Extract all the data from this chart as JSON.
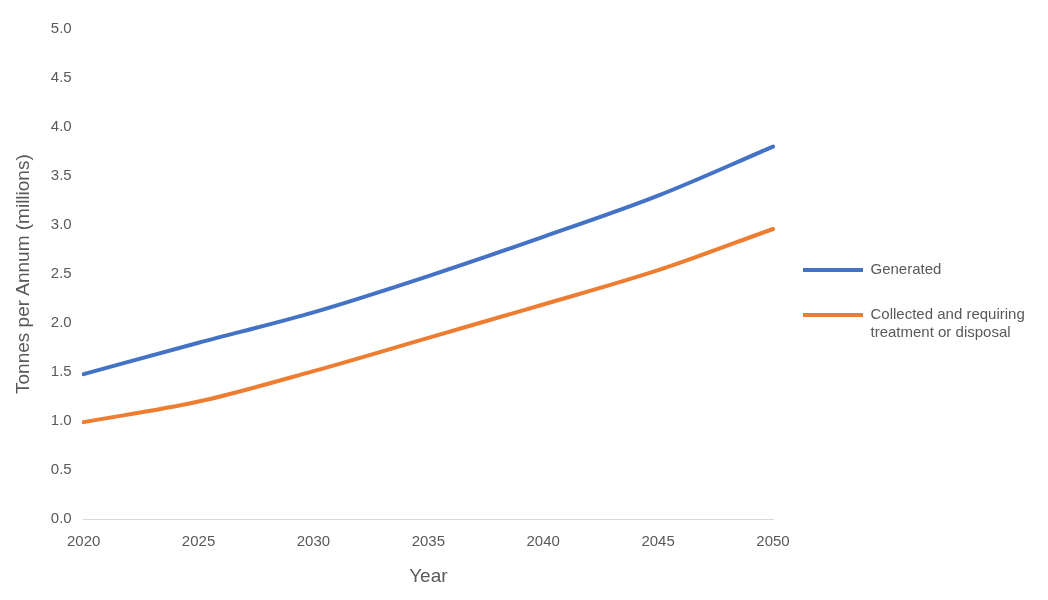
{
  "chart_data": {
    "type": "line",
    "xlabel": "Year",
    "ylabel": "Tonnes per Annum (millions)",
    "categories": [
      "2020",
      "2025",
      "2030",
      "2035",
      "2040",
      "2045",
      "2050"
    ],
    "series": [
      {
        "name": "Generated",
        "color": "#4472c4",
        "values": [
          1.48,
          1.8,
          2.11,
          2.48,
          2.88,
          3.3,
          3.8
        ]
      },
      {
        "name": "Collected and requiring treatment or disposal",
        "color": "#ed7d31",
        "values": [
          0.99,
          1.2,
          1.51,
          1.85,
          2.19,
          2.54,
          2.96
        ]
      }
    ],
    "ylim": [
      0,
      5
    ],
    "yticks": [
      {
        "value": 0,
        "label": "0.0"
      },
      {
        "value": 0.5,
        "label": "0.5"
      },
      {
        "value": 1,
        "label": "1.0"
      },
      {
        "value": 1.5,
        "label": "1.5"
      },
      {
        "value": 2,
        "label": "2.0"
      },
      {
        "value": 2.5,
        "label": "2.5"
      },
      {
        "value": 3,
        "label": "3.0"
      },
      {
        "value": 3.5,
        "label": "3.5"
      },
      {
        "value": 4,
        "label": "4.0"
      },
      {
        "value": 4.5,
        "label": "4.5"
      },
      {
        "value": 5,
        "label": "5.0"
      }
    ],
    "grid": false,
    "legend": "right",
    "marker": "none",
    "line_style": "solid"
  }
}
